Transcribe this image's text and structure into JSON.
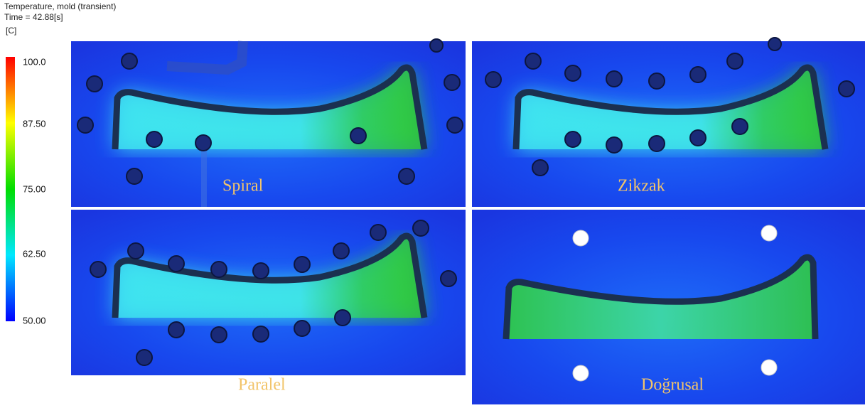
{
  "header": {
    "title": "Temperature, mold (transient)",
    "time": "Time = 42.88[s]",
    "unit": "[C]"
  },
  "legend": {
    "ticks": [
      "100.0",
      "87.50",
      "75.00",
      "62.50",
      "50.00"
    ]
  },
  "panels": [
    {
      "label": "Spiral"
    },
    {
      "label": "Zikzak"
    },
    {
      "label": "Paralel"
    },
    {
      "label": "Doğrusal"
    }
  ]
}
